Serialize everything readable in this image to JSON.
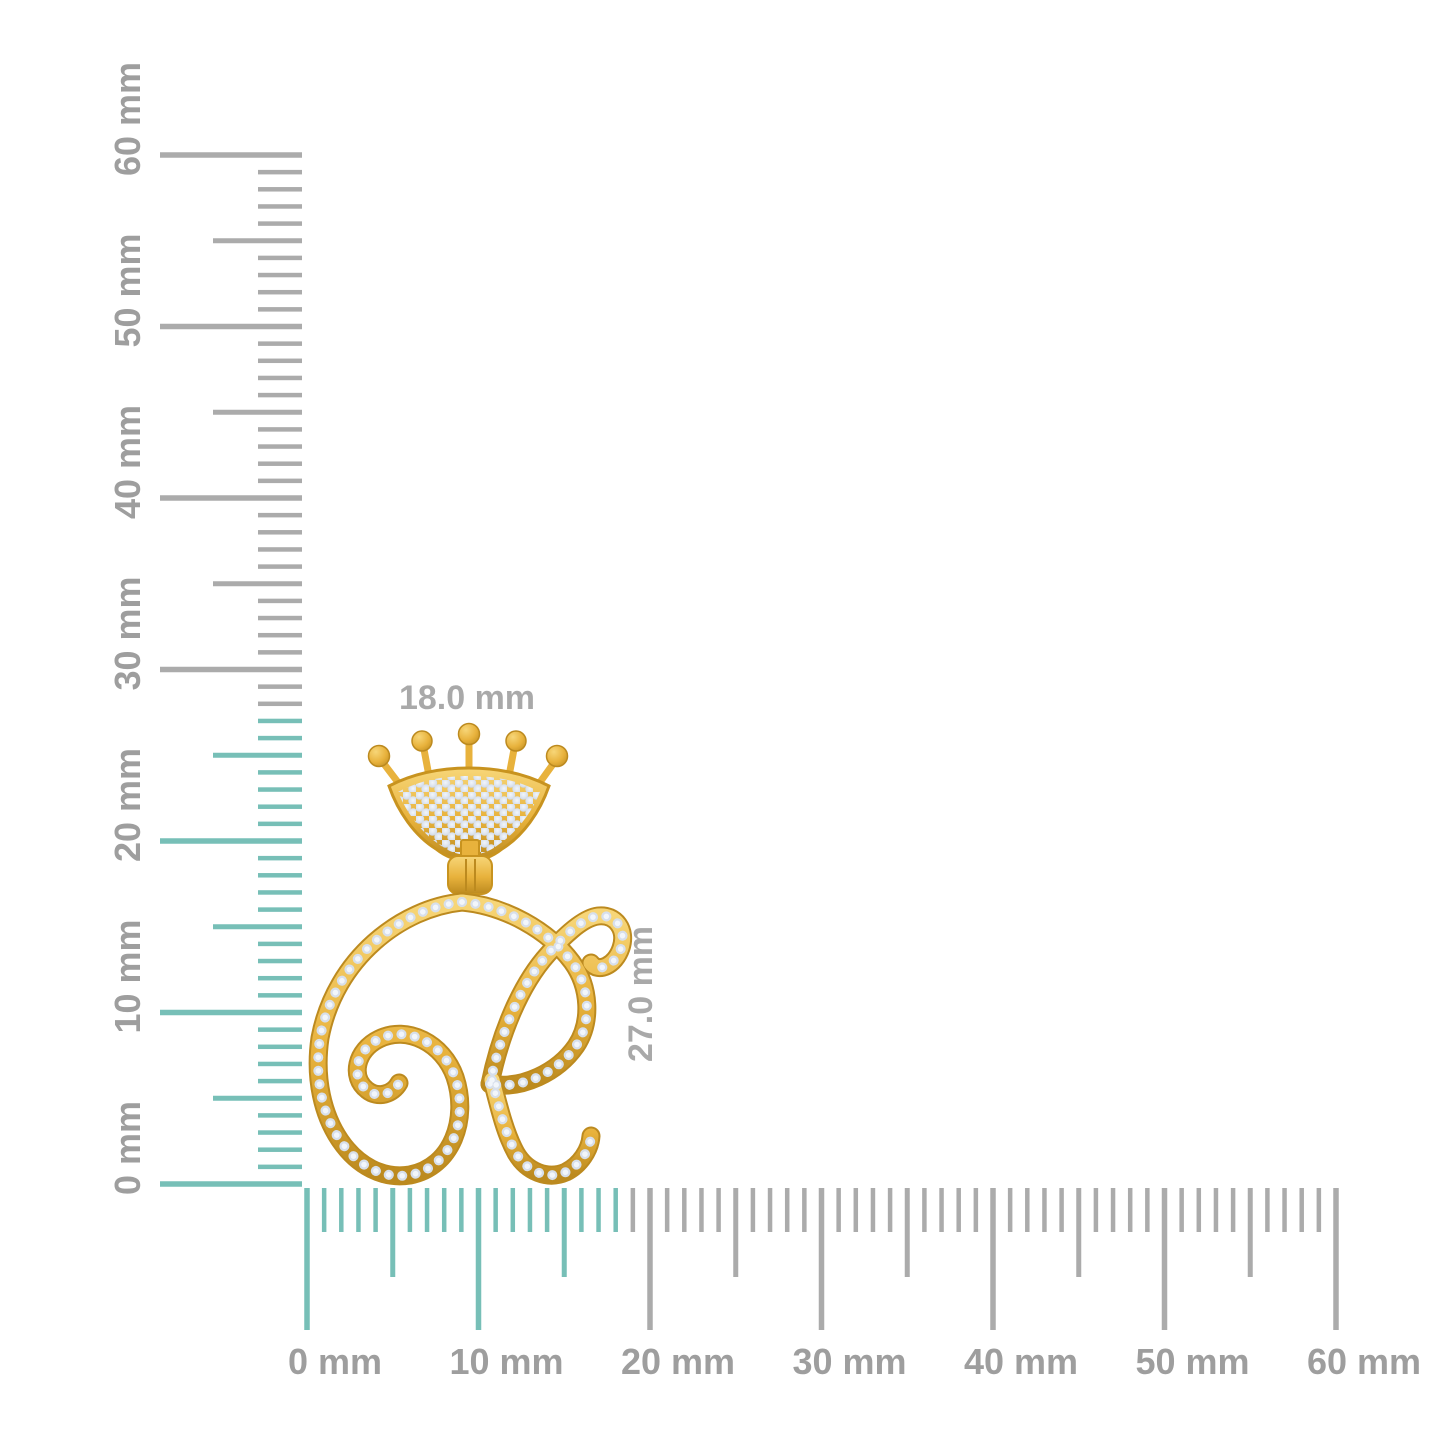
{
  "rulers": {
    "unit": "mm",
    "range_mm": [
      0,
      60
    ],
    "minor_step_mm": 1,
    "medium_step_mm": 5,
    "major_step_mm": 10,
    "vertical": {
      "labels": [
        "0 mm",
        "10 mm",
        "20 mm",
        "30 mm",
        "40 mm",
        "50 mm",
        "60 mm"
      ],
      "highlight_to_mm": 27
    },
    "horizontal": {
      "labels": [
        "0 mm",
        "10 mm",
        "20 mm",
        "30 mm",
        "40 mm",
        "50 mm",
        "60 mm"
      ],
      "highlight_to_mm": 18
    },
    "colors": {
      "tick_gray": "#ababab",
      "tick_highlight_teal": "#77bfb7",
      "label_gray": "#9e9e9e"
    }
  },
  "pendant": {
    "letter": "R",
    "width_label": "18.0 mm",
    "height_label": "27.0 mm",
    "colors": {
      "gold": "#e8b23c",
      "gold_light": "#f7d678",
      "gold_dark": "#bc8a1f",
      "diamond": "#d7dfeb",
      "diamond_shadow": "#aab6c8",
      "diamond_highlight": "#f2f6fb"
    }
  }
}
